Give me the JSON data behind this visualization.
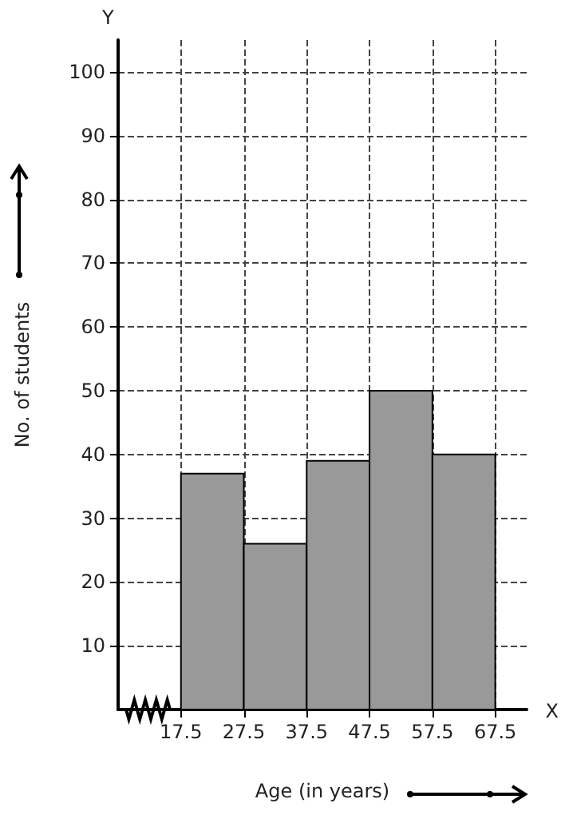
{
  "chart_data": {
    "type": "histogram",
    "xlabel": "Age (in years)",
    "ylabel": "No. of students",
    "bins": [
      17.5,
      27.5,
      37.5,
      47.5,
      57.5,
      67.5
    ],
    "values": [
      37,
      26,
      39,
      50,
      40
    ],
    "color": "#999999",
    "xlim": [
      7.5,
      72.5
    ],
    "ylim": [
      0,
      105
    ],
    "xticks": [
      17.5,
      27.5,
      37.5,
      47.5,
      57.5,
      67.5
    ],
    "yticks": [
      10,
      20,
      30,
      40,
      50,
      60,
      70,
      80,
      90,
      100
    ],
    "annotations": [
      "X",
      "Y"
    ],
    "grid": true
  }
}
